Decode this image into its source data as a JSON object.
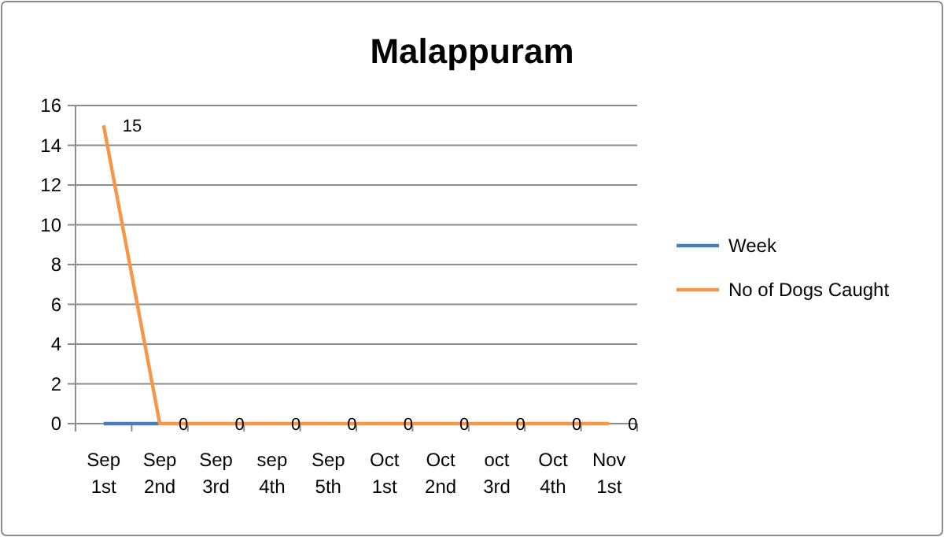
{
  "chart_data": {
    "type": "line",
    "title": "Malappuram",
    "categories": [
      "Sep 1st",
      "Sep 2nd",
      "Sep 3rd",
      "sep 4th",
      "Sep 5th",
      "Oct 1st",
      "Oct 2nd",
      "oct 3rd",
      "Oct 4th",
      "Nov 1st"
    ],
    "series": [
      {
        "name": "Week",
        "color": "#4a7ebb",
        "values": [
          0,
          0,
          null,
          null,
          null,
          null,
          null,
          null,
          null,
          null
        ]
      },
      {
        "name": "No of Dogs Caught",
        "color": "#f79646",
        "values": [
          15,
          0,
          0,
          0,
          0,
          0,
          0,
          0,
          0,
          0
        ],
        "value_labels": [
          "15",
          "0",
          "0",
          "0",
          "0",
          "0",
          "0",
          "0",
          "0",
          "0"
        ]
      }
    ],
    "ylim": [
      0,
      16
    ],
    "yticks": [
      0,
      2,
      4,
      6,
      8,
      10,
      12,
      14,
      16
    ],
    "grid": "y",
    "legend": "right",
    "marker": "none",
    "line_style": "solid"
  }
}
